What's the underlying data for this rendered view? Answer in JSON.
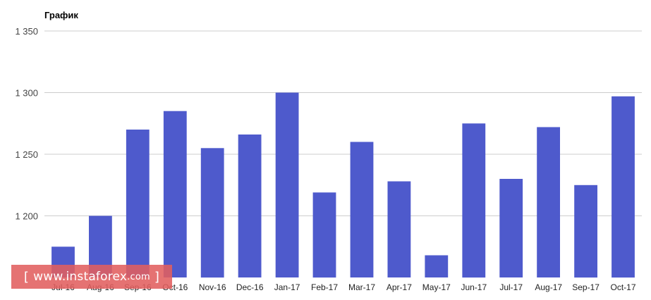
{
  "chart_data": {
    "type": "bar",
    "title": "График",
    "xlabel": "",
    "ylabel": "",
    "categories": [
      "Jul-16",
      "Aug-16",
      "Sep-16",
      "Oct-16",
      "Nov-16",
      "Dec-16",
      "Jan-17",
      "Feb-17",
      "Mar-17",
      "Apr-17",
      "May-17",
      "Jun-17",
      "Jul-17",
      "Aug-17",
      "Sep-17",
      "Oct-17"
    ],
    "values": [
      1175,
      1200,
      1270,
      1285,
      1255,
      1266,
      1300,
      1219,
      1260,
      1228,
      1168,
      1275,
      1230,
      1272,
      1225,
      1297
    ],
    "ylim": [
      1150,
      1350
    ],
    "yticks": [
      1200,
      1250,
      1300,
      1350
    ],
    "ytick_labels": [
      "1 200",
      "1 250",
      "1 300",
      "1 350"
    ],
    "grid": true,
    "legend": "none",
    "bar_color": "#4e5acc"
  },
  "watermark": {
    "left_bracket": "[",
    "text": "www.instaforex",
    "suffix": ".com",
    "right_bracket": "]"
  }
}
